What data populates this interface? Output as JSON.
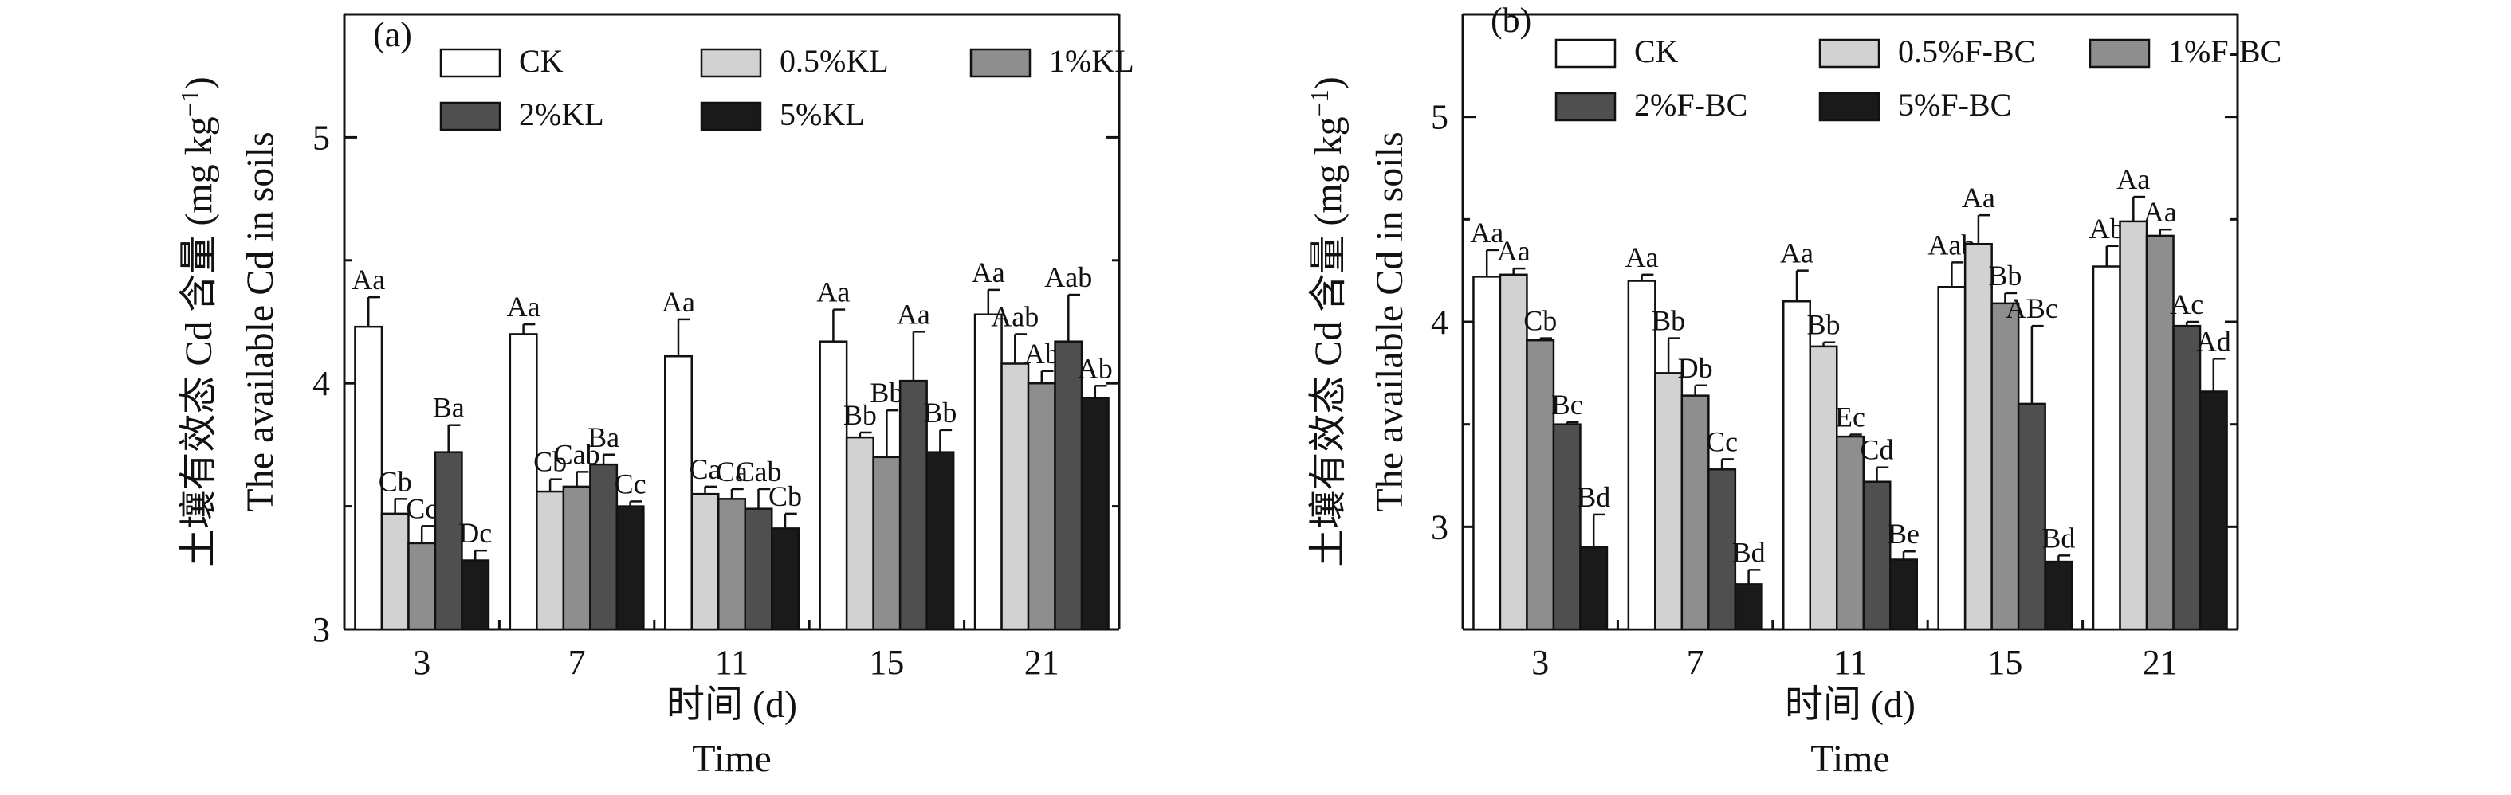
{
  "chart_data": [
    {
      "panel": "(a)",
      "type": "bar",
      "xlabel_cn": "时间 (d)",
      "xlabel_en": "Time",
      "ylabel_cn": "土壤有效态 Cd 含量 (mg kg",
      "ylabel_cn_sup": "−1",
      "ylabel_cn_close": ")",
      "ylabel_en": "The available Cd in soils",
      "ylim": [
        3,
        5.5
      ],
      "yticks": [
        "3",
        "4",
        "5"
      ],
      "ytick_values": [
        3,
        4,
        5
      ],
      "categories": [
        "3",
        "7",
        "11",
        "15",
        "21"
      ],
      "series": [
        {
          "name": "CK",
          "color": "#ffffff",
          "values": [
            4.23,
            4.2,
            4.11,
            4.17,
            4.28
          ],
          "errors": [
            0.12,
            0.04,
            0.15,
            0.13,
            0.1
          ],
          "labels": [
            "Aa",
            "Aa",
            "Aa",
            "Aa",
            "Aa"
          ]
        },
        {
          "name": "0.5%KL",
          "color": "#d2d2d2",
          "values": [
            3.47,
            3.56,
            3.55,
            3.78,
            4.08
          ],
          "errors": [
            0.06,
            0.05,
            0.03,
            0.02,
            0.12
          ],
          "labels": [
            "Cb",
            "Cb",
            "Ca",
            "Bb",
            "Aab"
          ]
        },
        {
          "name": "1%KL",
          "color": "#8e8e8e",
          "values": [
            3.35,
            3.58,
            3.53,
            3.7,
            4.0
          ],
          "errors": [
            0.07,
            0.06,
            0.04,
            0.19,
            0.05
          ],
          "labels": [
            "Cc",
            "Cab",
            "Ca",
            "Bb",
            "Ab"
          ]
        },
        {
          "name": "2%KL",
          "color": "#4f4f4f",
          "values": [
            3.72,
            3.67,
            3.49,
            4.01,
            4.17
          ],
          "errors": [
            0.11,
            0.04,
            0.08,
            0.2,
            0.19
          ],
          "labels": [
            "Ba",
            "Ba",
            "Cab",
            "Aa",
            "Aab"
          ]
        },
        {
          "name": "5%KL",
          "color": "#1a1a1a",
          "values": [
            3.28,
            3.5,
            3.41,
            3.72,
            3.94
          ],
          "errors": [
            0.04,
            0.02,
            0.06,
            0.09,
            0.05
          ],
          "labels": [
            "Dc",
            "Cc",
            "Cb",
            "Bb",
            "Ab"
          ]
        }
      ],
      "legend_placement": "top"
    },
    {
      "panel": "(b)",
      "type": "bar",
      "xlabel_cn": "时间 (d)",
      "xlabel_en": "Time",
      "ylabel_cn": "土壤有效态 Cd 含量 (mg kg",
      "ylabel_cn_sup": "−1",
      "ylabel_cn_close": ")",
      "ylabel_en": "The available Cd in soils",
      "ylim": [
        2.5,
        5.5
      ],
      "yticks": [
        "3",
        "4",
        "5"
      ],
      "ytick_values": [
        3,
        4,
        5
      ],
      "categories": [
        "3",
        "7",
        "11",
        "15",
        "21"
      ],
      "series": [
        {
          "name": "CK",
          "color": "#ffffff",
          "values": [
            4.22,
            4.2,
            4.1,
            4.17,
            4.27
          ],
          "errors": [
            0.13,
            0.03,
            0.15,
            0.12,
            0.1
          ],
          "labels": [
            "Aa",
            "Aa",
            "Aa",
            "Aab",
            "Ab"
          ]
        },
        {
          "name": "0.5%F-BC",
          "color": "#d2d2d2",
          "values": [
            4.23,
            3.75,
            3.88,
            4.38,
            4.49
          ],
          "errors": [
            0.03,
            0.17,
            0.02,
            0.14,
            0.12
          ],
          "labels": [
            "Aa",
            "Bb",
            "Bb",
            "Aa",
            "Aa"
          ]
        },
        {
          "name": "1%F-BC",
          "color": "#8e8e8e",
          "values": [
            3.91,
            3.64,
            3.44,
            4.09,
            4.42
          ],
          "errors": [
            0.01,
            0.05,
            0.01,
            0.05,
            0.03
          ],
          "labels": [
            "Cb",
            "Db",
            "Ec",
            "Bb",
            "Aa"
          ]
        },
        {
          "name": "2%F-BC",
          "color": "#4f4f4f",
          "values": [
            3.5,
            3.28,
            3.22,
            3.6,
            3.98
          ],
          "errors": [
            0.01,
            0.05,
            0.07,
            0.38,
            0.02
          ],
          "labels": [
            "Bc",
            "Cc",
            "Cd",
            "ABc",
            "Ac"
          ]
        },
        {
          "name": "5%F-BC",
          "color": "#1a1a1a",
          "values": [
            2.9,
            2.72,
            2.84,
            2.83,
            3.66
          ],
          "errors": [
            0.16,
            0.07,
            0.04,
            0.03,
            0.16
          ],
          "labels": [
            "Bd",
            "Bd",
            "Be",
            "Bd",
            "Ad"
          ]
        }
      ],
      "legend_placement": "top"
    }
  ]
}
